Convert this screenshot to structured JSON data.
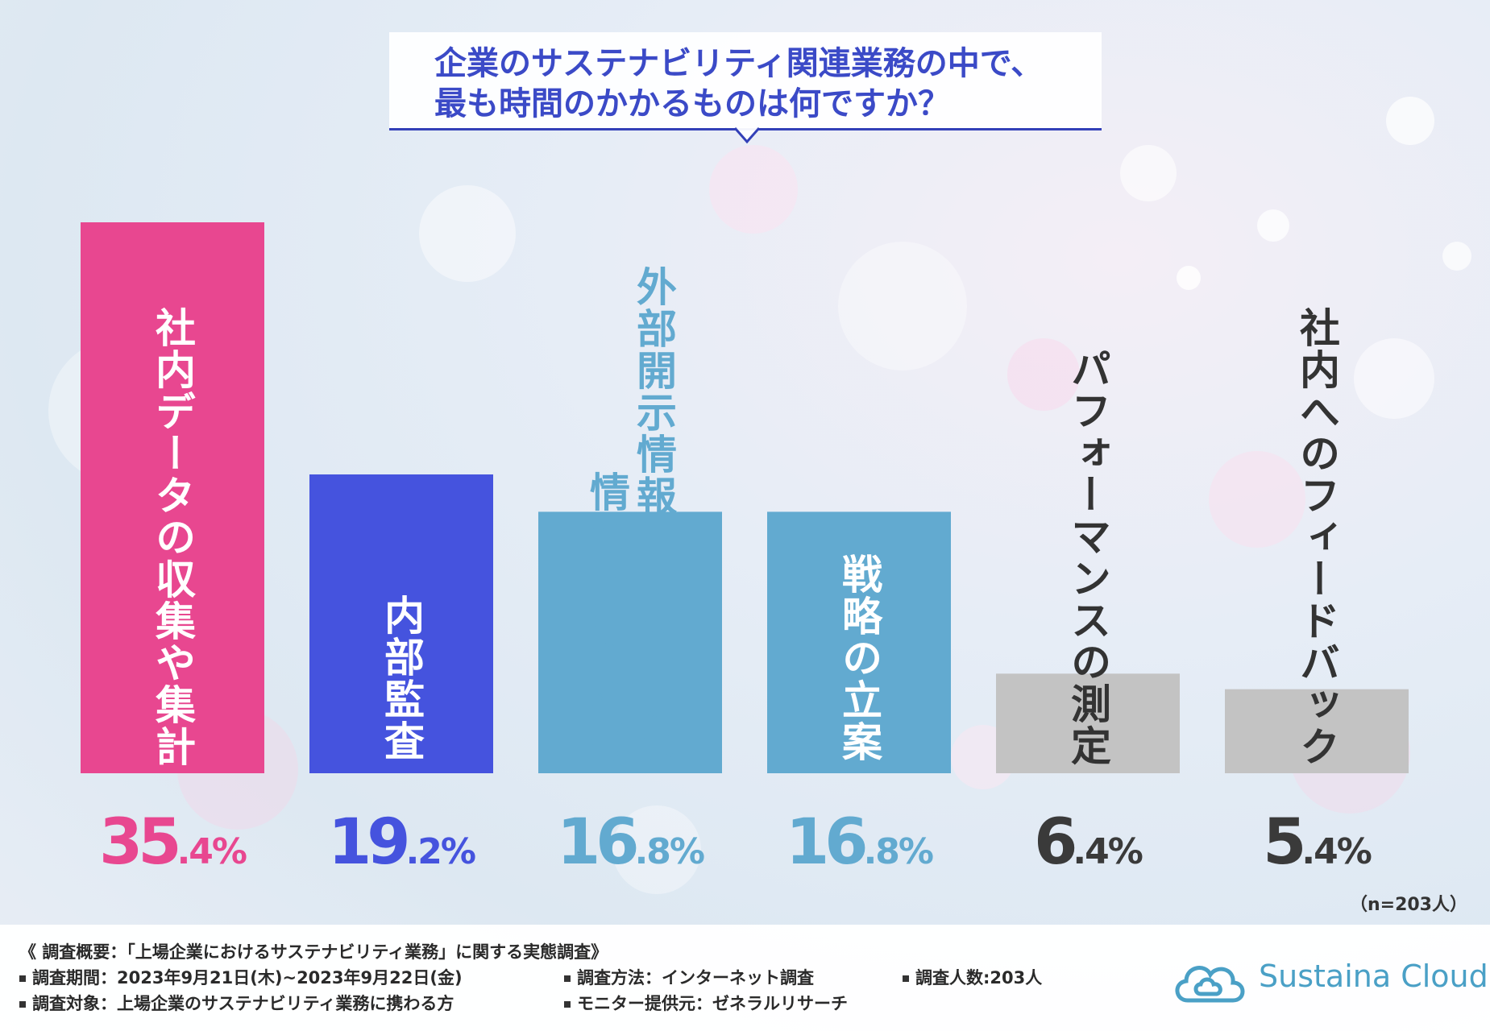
{
  "title": {
    "line1": "企業のサステナビリティ関連業務の中で、",
    "line2": "最も時間のかかるものは何ですか？"
  },
  "colors": {
    "pink": "#e84790",
    "blue": "#4553de",
    "light_blue": "#62aad0",
    "gray": "#c3c3c3",
    "title": "#3b4ac7"
  },
  "chart_data": {
    "type": "bar",
    "title": "企業のサステナビリティ関連業務の中で、最も時間のかかるものは何ですか？",
    "categories": [
      "社内データの収集や集計",
      "内部監査",
      "外部開示情報とするための情報整理や準備",
      "戦略の立案",
      "パフォーマンスの測定",
      "社内へのフィードバック"
    ],
    "values": [
      35.4,
      19.2,
      16.8,
      16.8,
      6.4,
      5.4
    ],
    "value_labels": [
      {
        "int": "35",
        "dec": ".4%"
      },
      {
        "int": "19",
        "dec": ".2%"
      },
      {
        "int": "16",
        "dec": ".8%"
      },
      {
        "int": "16",
        "dec": ".8%"
      },
      {
        "int": "6",
        "dec": ".4%"
      },
      {
        "int": "5",
        "dec": ".4%"
      }
    ],
    "label_columns": [
      [
        "社内データの収集や集計"
      ],
      [
        "内部監査"
      ],
      [
        "外部開示情報とするための",
        "情報整理や準備"
      ],
      [
        "戦略の立案"
      ],
      [
        "パフォーマンスの測定"
      ],
      [
        "社内へのフィードバック"
      ]
    ],
    "bar_colors": [
      "#e84790",
      "#4553de",
      "#62aad0",
      "#62aad0",
      "#c3c3c3",
      "#c3c3c3"
    ],
    "label_colors": [
      "#ffffff",
      "#ffffff",
      "#62aad0",
      "#ffffff",
      "#333333",
      "#333333"
    ],
    "pct_colors": [
      "#e84790",
      "#4553de",
      "#62aad0",
      "#62aad0",
      "#3a3a3a",
      "#3a3a3a"
    ],
    "unit": "%",
    "sample_note": "（n=203人）"
  },
  "footer": {
    "summary": "《 調査概要：「上場企業におけるサステナビリティ業務」に関する実態調査》",
    "period": "調査期間：2023年9月21日(木)~2023年9月22日(金)",
    "method": "調査方法：インターネット調査",
    "count": "調査人数:203人",
    "target": "調査対象：上場企業のサステナビリティ業務に携わる方",
    "provider": "モニター提供元：ゼネラルリサーチ"
  },
  "logo": {
    "text": "Sustaina Cloud",
    "icon": "cloud-logo-icon"
  }
}
